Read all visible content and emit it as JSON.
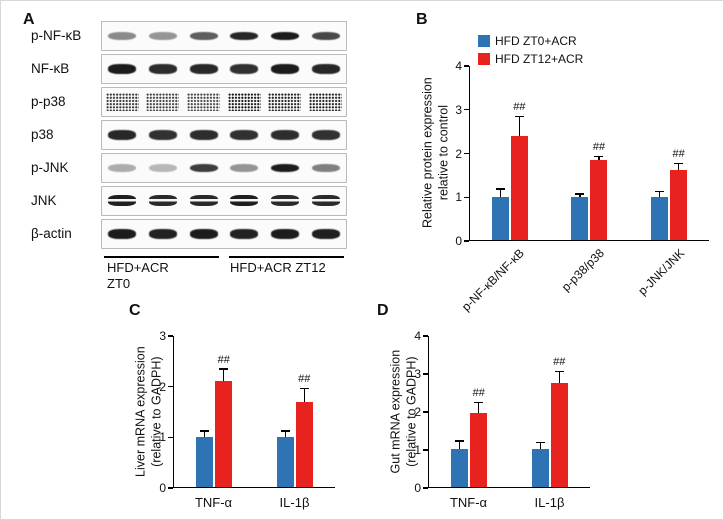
{
  "panels": {
    "a": {
      "label": "A",
      "blots": [
        {
          "label": "p-NF-κB",
          "style": "solid",
          "bands": [
            0.5,
            0.45,
            0.7,
            0.95,
            1,
            0.8
          ]
        },
        {
          "label": "NF-κB",
          "style": "thick",
          "bands": [
            1,
            0.92,
            0.94,
            0.9,
            1,
            0.95
          ]
        },
        {
          "label": "p-p38",
          "style": "speckled",
          "bands": [
            0.85,
            0.8,
            0.78,
            1,
            0.95,
            0.95
          ]
        },
        {
          "label": "p38",
          "style": "thick",
          "bands": [
            0.95,
            0.9,
            0.92,
            0.9,
            0.92,
            0.9
          ]
        },
        {
          "label": "p-JNK",
          "style": "solid",
          "bands": [
            0.35,
            0.3,
            0.85,
            0.45,
            1,
            0.55
          ]
        },
        {
          "label": "JNK",
          "style": "doublet",
          "bands": [
            0.95,
            0.9,
            0.9,
            0.95,
            0.9,
            0.9
          ]
        },
        {
          "label": "β-actin",
          "style": "thick",
          "bands": [
            1,
            0.97,
            1,
            0.97,
            1,
            0.98
          ]
        }
      ],
      "groups": [
        {
          "lines": [
            "HFD+ACR",
            "ZT0"
          ]
        },
        {
          "lines": [
            "HFD+ACR ZT12"
          ]
        }
      ]
    },
    "b": {
      "label": "B"
    },
    "c": {
      "label": "C"
    },
    "d": {
      "label": "D"
    }
  },
  "chart_data": [
    {
      "id": "B",
      "type": "bar",
      "ylabel_lines": [
        "Relative protein expression",
        "relative to control"
      ],
      "ylim": [
        0,
        4
      ],
      "ytick_step": 1,
      "categories": [
        "p-NF-κB/NF-κB",
        "p-p38/p38",
        "p-JNK/JNK"
      ],
      "xlabel_rotated": true,
      "legend_position": "top-left",
      "series": [
        {
          "name": "HFD ZT0+ACR",
          "color": "#2e74b5",
          "values": [
            1,
            1,
            1
          ],
          "errors": [
            0.18,
            0.06,
            0.12
          ],
          "sig": [
            "",
            "",
            ""
          ]
        },
        {
          "name": "HFD ZT12+ACR",
          "color": "#e8231f",
          "values": [
            2.4,
            1.85,
            1.6
          ],
          "errors": [
            0.45,
            0.07,
            0.17
          ],
          "sig": [
            "##",
            "##",
            "##"
          ]
        }
      ]
    },
    {
      "id": "C",
      "type": "bar",
      "ylabel_lines": [
        "Liver mRNA expression",
        "(relative to GADPH)"
      ],
      "ylim": [
        0,
        3
      ],
      "ytick_step": 1,
      "categories": [
        "TNF-α",
        "IL-1β"
      ],
      "xlabel_rotated": false,
      "series": [
        {
          "name": "HFD ZT0+ACR",
          "color": "#2e74b5",
          "values": [
            1,
            1
          ],
          "errors": [
            0.12,
            0.12
          ],
          "sig": [
            "",
            ""
          ]
        },
        {
          "name": "HFD ZT12+ACR",
          "color": "#e8231f",
          "values": [
            2.1,
            1.68
          ],
          "errors": [
            0.25,
            0.28
          ],
          "sig": [
            "##",
            "##"
          ]
        }
      ]
    },
    {
      "id": "D",
      "type": "bar",
      "ylabel_lines": [
        "Gut mRNA expression",
        "(relative to GADPH)"
      ],
      "ylim": [
        0,
        4
      ],
      "ytick_step": 1,
      "categories": [
        "TNF-α",
        "IL-1β"
      ],
      "xlabel_rotated": false,
      "series": [
        {
          "name": "HFD ZT0+ACR",
          "color": "#2e74b5",
          "values": [
            1,
            1
          ],
          "errors": [
            0.22,
            0.18
          ],
          "sig": [
            "",
            ""
          ]
        },
        {
          "name": "HFD ZT12+ACR",
          "color": "#e8231f",
          "values": [
            1.95,
            2.75
          ],
          "errors": [
            0.3,
            0.32
          ],
          "sig": [
            "##",
            "##"
          ]
        }
      ]
    }
  ]
}
